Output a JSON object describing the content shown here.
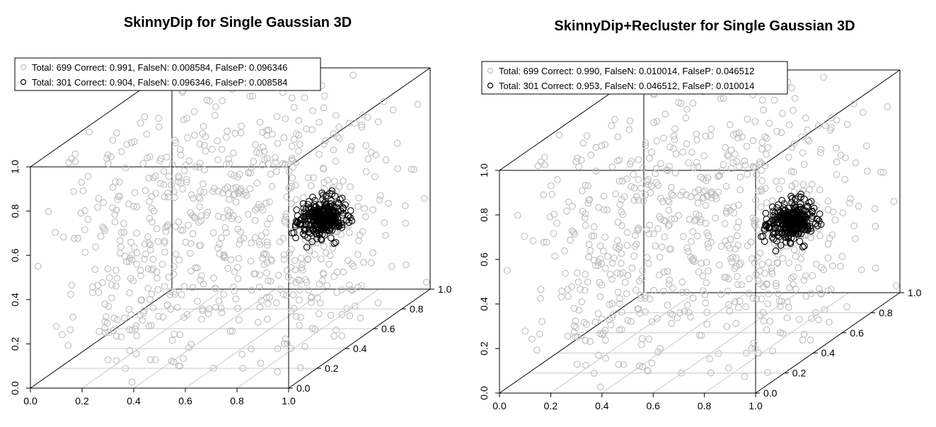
{
  "chart_data": [
    {
      "type": "scatter",
      "title": "SkinnyDip for Single Gaussian 3D",
      "x_ticks": [
        "0.0",
        "0.2",
        "0.4",
        "0.6",
        "0.8",
        "1.0"
      ],
      "y_ticks": [
        "0.0",
        "0.2",
        "0.4",
        "0.6",
        "0.8",
        "1.0"
      ],
      "z_ticks": [
        "0.0",
        "0.2",
        "0.4",
        "0.6",
        "0.8",
        "1.0"
      ],
      "xlim": [
        0,
        1
      ],
      "ylim": [
        0,
        1
      ],
      "zlim": [
        0,
        1
      ],
      "legend_position": "top-left",
      "legend": [
        {
          "text": "Total: 699 Correct: 0.991, FalseN: 0.008584, FalseP: 0.096346",
          "color": "#bdbdbd"
        },
        {
          "text": "Total: 301 Correct: 0.904, FalseN: 0.096346, FalseP: 0.008584",
          "color": "#000000"
        }
      ],
      "series": [
        {
          "count": 699,
          "distribution": "uniform",
          "range": [
            0,
            1
          ],
          "color": "#bdbdbd"
        },
        {
          "count": 301,
          "distribution": "gaussian",
          "center": [
            0.8,
            0.6,
            0.5
          ],
          "sd": 0.04,
          "color": "#000000"
        }
      ]
    },
    {
      "type": "scatter",
      "title": "SkinnyDip+Recluster for Single Gaussian 3D",
      "x_ticks": [
        "0.0",
        "0.2",
        "0.4",
        "0.6",
        "0.8",
        "1.0"
      ],
      "y_ticks": [
        "0.0",
        "0.2",
        "0.4",
        "0.6",
        "0.8",
        "1.0"
      ],
      "z_ticks": [
        "0.0",
        "0.2",
        "0.4",
        "0.6",
        "0.8",
        "1.0"
      ],
      "xlim": [
        0,
        1
      ],
      "ylim": [
        0,
        1
      ],
      "zlim": [
        0,
        1
      ],
      "legend_position": "top-left",
      "legend": [
        {
          "text": "Total: 699 Correct: 0.990, FalseN: 0.010014, FalseP: 0.046512",
          "color": "#bdbdbd"
        },
        {
          "text": "Total: 301 Correct: 0.953, FalseN: 0.046512, FalseP: 0.010014",
          "color": "#000000"
        }
      ],
      "series": [
        {
          "count": 699,
          "distribution": "uniform",
          "range": [
            0,
            1
          ],
          "color": "#bdbdbd"
        },
        {
          "count": 301,
          "distribution": "gaussian",
          "center": [
            0.8,
            0.6,
            0.5
          ],
          "sd": 0.04,
          "color": "#000000"
        }
      ]
    }
  ]
}
